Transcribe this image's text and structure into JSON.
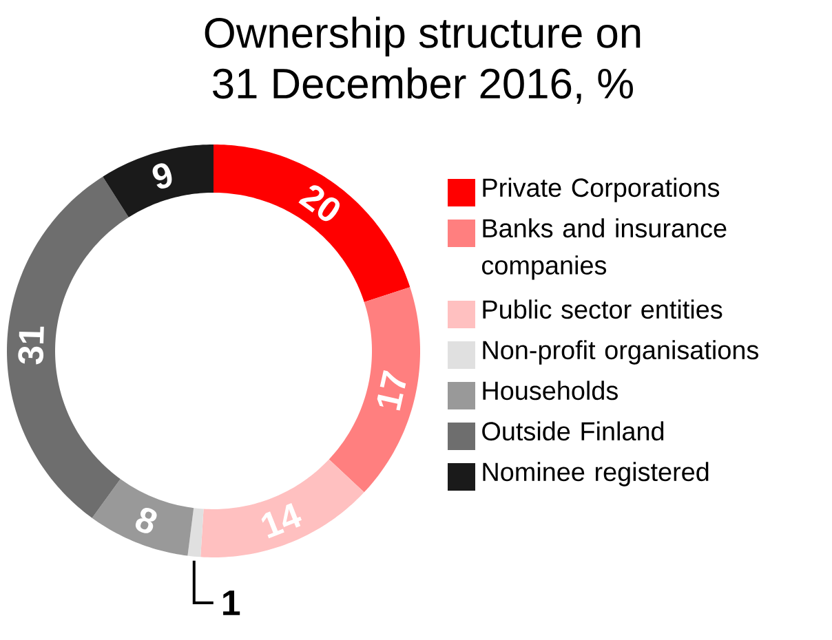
{
  "chart_data": {
    "type": "donut",
    "title": "Ownership structure on\n31 December 2016, %",
    "categories": [
      "Private Corporations",
      "Banks and insurance companies",
      "Public sector entities",
      "Non-profit organisations",
      "Households",
      "Outside Finland",
      "Nominee registered"
    ],
    "values": [
      20,
      17,
      14,
      1,
      8,
      31,
      9
    ],
    "colors": [
      "#ff0000",
      "#ff7f7f",
      "#ffc0c0",
      "#e0e0e0",
      "#999999",
      "#6e6e6e",
      "#1a1a1a"
    ],
    "data_labels": true,
    "legend": "right"
  }
}
